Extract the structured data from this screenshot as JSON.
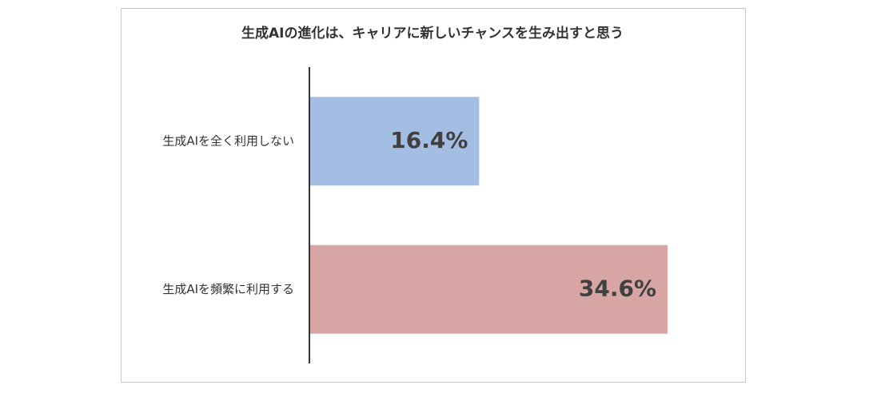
{
  "chart_data": {
    "type": "hbar",
    "title": "生成AIの進化は、キャリアに新しいチャンスを生み出すと思う",
    "categories": [
      "生成AIを全く利用しない",
      "生成AIを頻繁に利用する"
    ],
    "values": [
      16.4,
      34.6
    ],
    "value_labels": [
      "16.4%",
      "34.6%"
    ],
    "colors": [
      "#a4bde3",
      "#d8a5a5"
    ]
  }
}
